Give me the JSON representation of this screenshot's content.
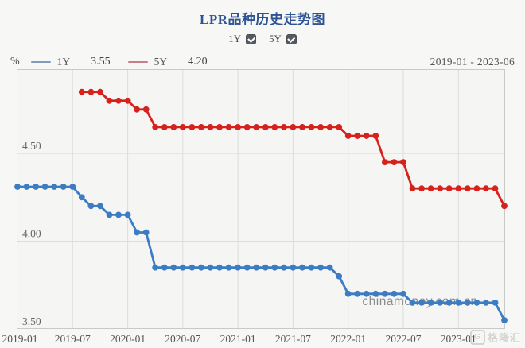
{
  "header": {
    "title": "LPR品种历史走势图",
    "toggles": [
      {
        "label": "1Y",
        "checked": true
      },
      {
        "label": "5Y",
        "checked": true
      }
    ]
  },
  "legend": {
    "unit": "%",
    "series": [
      {
        "name": "1Y",
        "value": "3.55",
        "swatch_color": "#7f9cc0"
      },
      {
        "name": "5Y",
        "value": "4.20",
        "swatch_color": "#cb7e89"
      }
    ],
    "date_range": "2019-01 - 2023-06"
  },
  "watermark": "chinamoney.com.cn",
  "logo": {
    "text": "格隆汇"
  },
  "chart_data": {
    "type": "line",
    "title": "LPR品种历史走势图",
    "x": [
      "2019-01",
      "2019-02",
      "2019-03",
      "2019-04",
      "2019-05",
      "2019-06",
      "2019-07",
      "2019-08",
      "2019-09",
      "2019-10",
      "2019-11",
      "2019-12",
      "2020-01",
      "2020-02",
      "2020-03",
      "2020-04",
      "2020-05",
      "2020-06",
      "2020-07",
      "2020-08",
      "2020-09",
      "2020-10",
      "2020-11",
      "2020-12",
      "2021-01",
      "2021-02",
      "2021-03",
      "2021-04",
      "2021-05",
      "2021-06",
      "2021-07",
      "2021-08",
      "2021-09",
      "2021-10",
      "2021-11",
      "2021-12",
      "2022-01",
      "2022-02",
      "2022-03",
      "2022-04",
      "2022-05",
      "2022-06",
      "2022-07",
      "2022-08",
      "2022-09",
      "2022-10",
      "2022-11",
      "2022-12",
      "2023-01",
      "2023-02",
      "2023-03",
      "2023-04",
      "2023-05",
      "2023-06"
    ],
    "x_tick_labels": [
      "2019-01",
      "2019-07",
      "2020-01",
      "2020-07",
      "2021-01",
      "2021-07",
      "2022-01",
      "2022-07",
      "2023-01"
    ],
    "x_tick_step": 6,
    "y_ticks": [
      {
        "label": "4.50",
        "value": 4.5
      },
      {
        "label": "4.00",
        "value": 4.0
      },
      {
        "label": "3.50",
        "value": 3.5
      }
    ],
    "ylim": [
      3.5,
      4.98
    ],
    "grid": true,
    "series": [
      {
        "name": "1Y",
        "color": "#3c7cc3",
        "values": [
          4.31,
          4.31,
          4.31,
          4.31,
          4.31,
          4.31,
          4.31,
          4.25,
          4.2,
          4.2,
          4.15,
          4.15,
          4.15,
          4.05,
          4.05,
          3.85,
          3.85,
          3.85,
          3.85,
          3.85,
          3.85,
          3.85,
          3.85,
          3.85,
          3.85,
          3.85,
          3.85,
          3.85,
          3.85,
          3.85,
          3.85,
          3.85,
          3.85,
          3.85,
          3.85,
          3.8,
          3.7,
          3.7,
          3.7,
          3.7,
          3.7,
          3.7,
          3.7,
          3.65,
          3.65,
          3.65,
          3.65,
          3.65,
          3.65,
          3.65,
          3.65,
          3.65,
          3.65,
          3.55
        ]
      },
      {
        "name": "5Y",
        "color": "#d7211d",
        "values": [
          null,
          null,
          null,
          null,
          null,
          null,
          null,
          4.85,
          4.85,
          4.85,
          4.8,
          4.8,
          4.8,
          4.75,
          4.75,
          4.65,
          4.65,
          4.65,
          4.65,
          4.65,
          4.65,
          4.65,
          4.65,
          4.65,
          4.65,
          4.65,
          4.65,
          4.65,
          4.65,
          4.65,
          4.65,
          4.65,
          4.65,
          4.65,
          4.65,
          4.65,
          4.6,
          4.6,
          4.6,
          4.6,
          4.45,
          4.45,
          4.45,
          4.3,
          4.3,
          4.3,
          4.3,
          4.3,
          4.3,
          4.3,
          4.3,
          4.3,
          4.3,
          4.2
        ]
      }
    ]
  }
}
